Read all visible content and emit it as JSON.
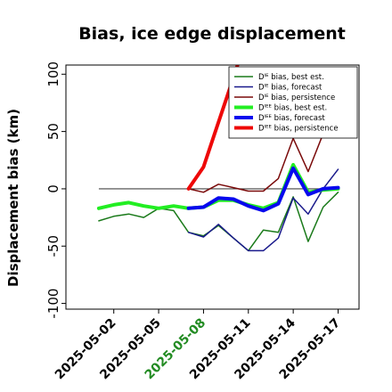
{
  "chart_data": {
    "type": "line",
    "title": "Bias, ice edge displacement",
    "ylabel": "Displacement bias (km)",
    "xlabel": "",
    "ylim": [
      -105,
      108
    ],
    "xlim": [
      -1.2,
      18.4
    ],
    "yticks": [
      100,
      50,
      0,
      -50,
      -100
    ],
    "xticks": [
      {
        "x": 2,
        "label": "2025-05-02",
        "color": "#000000"
      },
      {
        "x": 5,
        "label": "2025-05-05",
        "color": "#000000"
      },
      {
        "x": 8,
        "label": "2025-05-08",
        "color": "#228B22"
      },
      {
        "x": 11,
        "label": "2025-05-11",
        "color": "#000000"
      },
      {
        "x": 14,
        "label": "2025-05-14",
        "color": "#000000"
      },
      {
        "x": 17,
        "label": "2025-05-17",
        "color": "#000000"
      }
    ],
    "zero_line": {
      "y": 0,
      "x_start": 1,
      "x_end": 17,
      "color": "#444444"
    },
    "legend_position": "top-right",
    "series": [
      {
        "name": "Dᴵᴱ bias, best est.",
        "color": "#1a7a1a",
        "width": 1.5,
        "x": [
          1,
          2,
          3,
          4,
          5,
          6,
          7,
          8,
          9,
          10,
          11,
          12,
          13,
          14,
          15,
          16,
          17
        ],
        "y": [
          -28,
          -24,
          -22,
          -25,
          -17,
          -19,
          -38,
          -41,
          -32,
          -43,
          -54,
          -36,
          -38,
          -7,
          -46,
          -16,
          -3
        ]
      },
      {
        "name": "Dᴵᴱ bias, forecast",
        "color": "#1a1a8c",
        "width": 1.5,
        "x": [
          7,
          8,
          9,
          10,
          11,
          12,
          13,
          14,
          15,
          16,
          17
        ],
        "y": [
          -38,
          -42,
          -31,
          -43,
          -54,
          -54,
          -43,
          -8,
          -22,
          0,
          17
        ]
      },
      {
        "name": "Dᴵᴱ bias, persistence",
        "color": "#7a0a0a",
        "width": 1.5,
        "x": [
          7,
          8,
          9,
          10,
          11,
          12,
          13,
          14,
          15,
          16,
          17
        ],
        "y": [
          0,
          -3,
          4,
          1,
          -2,
          -2,
          9,
          44,
          15,
          48,
          75
        ]
      },
      {
        "name": "Dᴵᴱᴱ bias, best est.",
        "color": "#22ee22",
        "width": 4,
        "x": [
          1,
          2,
          3,
          4,
          5,
          6,
          7,
          8,
          9,
          10,
          11,
          12,
          13,
          14,
          15,
          16,
          17
        ],
        "y": [
          -17,
          -14,
          -12,
          -15,
          -17,
          -15,
          -17,
          -16,
          -10,
          -10,
          -14,
          -17,
          -12,
          21,
          -3,
          -1,
          0
        ]
      },
      {
        "name": "Dᴵᴱᴱ bias, forecast",
        "color": "#0808ee",
        "width": 4,
        "x": [
          7,
          8,
          9,
          10,
          11,
          12,
          13,
          14,
          15,
          16,
          17
        ],
        "y": [
          -17,
          -16,
          -8,
          -9,
          -15,
          -19,
          -13,
          18,
          -5,
          0,
          1
        ]
      },
      {
        "name": "Dᴵᴱᴱ bias, persistence",
        "color": "#ee0808",
        "width": 4,
        "x": [
          7,
          8,
          9,
          10,
          11
        ],
        "y": [
          0,
          19,
          58,
          97,
          137
        ]
      }
    ]
  }
}
